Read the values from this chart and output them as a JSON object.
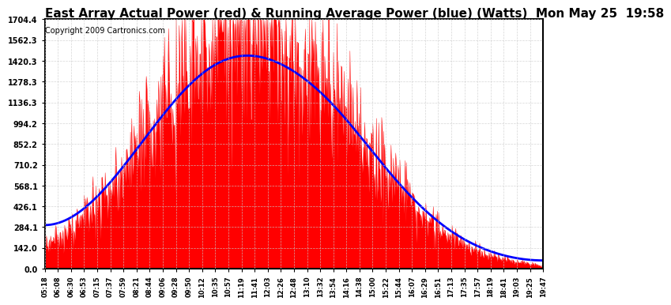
{
  "title": "East Array Actual Power (red) & Running Average Power (blue) (Watts)  Mon May 25  19:58",
  "copyright": "Copyright 2009 Cartronics.com",
  "ylabel_values": [
    0.0,
    142.0,
    284.1,
    426.1,
    568.1,
    710.2,
    852.2,
    994.2,
    1136.3,
    1278.3,
    1420.3,
    1562.3,
    1704.4
  ],
  "ymax": 1704.4,
  "ymin": 0.0,
  "fill_color": "red",
  "avg_color": "blue",
  "background_color": "#ffffff",
  "grid_color": "#cccccc",
  "title_fontsize": 11,
  "copyright_fontsize": 7,
  "tick_labels": [
    "05:18",
    "06:08",
    "06:30",
    "06:53",
    "07:15",
    "07:37",
    "07:59",
    "08:21",
    "08:44",
    "09:06",
    "09:28",
    "09:50",
    "10:12",
    "10:35",
    "10:57",
    "11:19",
    "11:41",
    "12:03",
    "12:26",
    "12:48",
    "13:10",
    "13:32",
    "13:54",
    "14:16",
    "14:38",
    "15:00",
    "15:22",
    "15:44",
    "16:07",
    "16:29",
    "16:51",
    "17:13",
    "17:35",
    "17:57",
    "18:19",
    "18:41",
    "19:03",
    "19:25",
    "19:47"
  ]
}
